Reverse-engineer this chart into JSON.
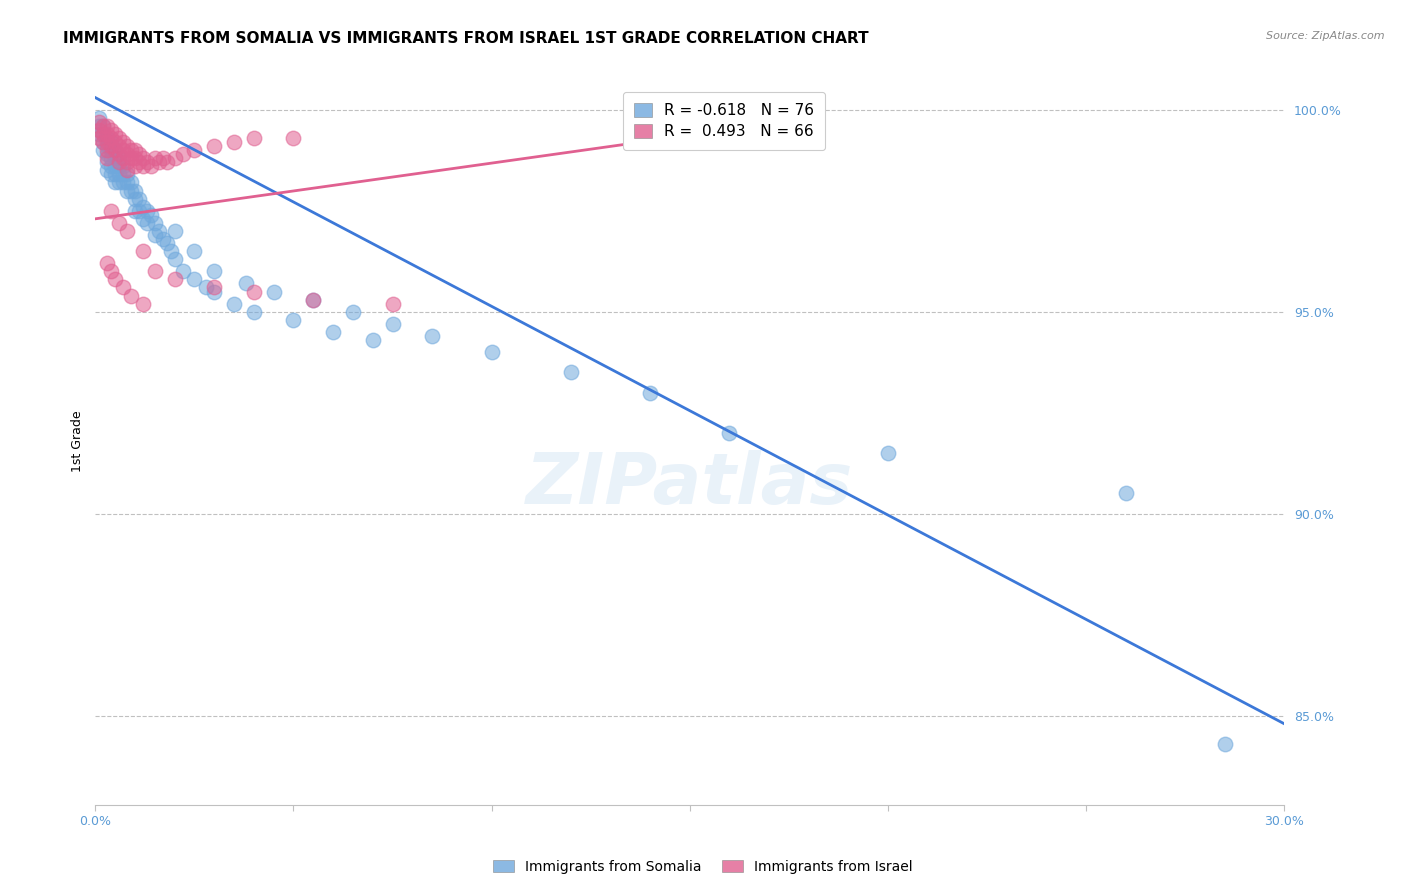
{
  "title": "IMMIGRANTS FROM SOMALIA VS IMMIGRANTS FROM ISRAEL 1ST GRADE CORRELATION CHART",
  "source": "Source: ZipAtlas.com",
  "ylabel": "1st Grade",
  "xlim": [
    0.0,
    0.3
  ],
  "ylim": [
    0.828,
    1.008
  ],
  "yticks": [
    0.85,
    0.9,
    0.95,
    1.0
  ],
  "ytick_labels": [
    "85.0%",
    "90.0%",
    "95.0%",
    "100.0%"
  ],
  "xtick_positions": [
    0.0,
    0.05,
    0.1,
    0.15,
    0.2,
    0.25,
    0.3
  ],
  "blue_color": "#6fa8dc",
  "pink_color": "#e06090",
  "blue_line_color": "#3c78d8",
  "pink_line_color": "#e06090",
  "legend_blue_label": "R = -0.618   N = 76",
  "legend_pink_label": "R =  0.493   N = 66",
  "somalia_label": "Immigrants from Somalia",
  "israel_label": "Immigrants from Israel",
  "watermark": "ZIPatlas",
  "blue_scatter_x": [
    0.001,
    0.001,
    0.001,
    0.002,
    0.002,
    0.002,
    0.002,
    0.003,
    0.003,
    0.003,
    0.003,
    0.003,
    0.004,
    0.004,
    0.004,
    0.004,
    0.004,
    0.005,
    0.005,
    0.005,
    0.005,
    0.005,
    0.006,
    0.006,
    0.006,
    0.006,
    0.007,
    0.007,
    0.007,
    0.008,
    0.008,
    0.008,
    0.009,
    0.009,
    0.01,
    0.01,
    0.01,
    0.011,
    0.011,
    0.012,
    0.012,
    0.013,
    0.013,
    0.014,
    0.015,
    0.015,
    0.016,
    0.017,
    0.018,
    0.019,
    0.02,
    0.022,
    0.025,
    0.028,
    0.03,
    0.035,
    0.04,
    0.05,
    0.06,
    0.07,
    0.02,
    0.025,
    0.03,
    0.038,
    0.045,
    0.055,
    0.065,
    0.075,
    0.085,
    0.1,
    0.12,
    0.14,
    0.16,
    0.2,
    0.26,
    0.285
  ],
  "blue_scatter_y": [
    0.998,
    0.996,
    0.994,
    0.996,
    0.994,
    0.992,
    0.99,
    0.993,
    0.991,
    0.989,
    0.987,
    0.985,
    0.992,
    0.99,
    0.988,
    0.986,
    0.984,
    0.99,
    0.988,
    0.986,
    0.984,
    0.982,
    0.988,
    0.986,
    0.984,
    0.982,
    0.986,
    0.984,
    0.982,
    0.984,
    0.982,
    0.98,
    0.982,
    0.98,
    0.98,
    0.978,
    0.975,
    0.978,
    0.975,
    0.976,
    0.973,
    0.975,
    0.972,
    0.974,
    0.972,
    0.969,
    0.97,
    0.968,
    0.967,
    0.965,
    0.963,
    0.96,
    0.958,
    0.956,
    0.955,
    0.952,
    0.95,
    0.948,
    0.945,
    0.943,
    0.97,
    0.965,
    0.96,
    0.957,
    0.955,
    0.953,
    0.95,
    0.947,
    0.944,
    0.94,
    0.935,
    0.93,
    0.92,
    0.915,
    0.905,
    0.843
  ],
  "pink_scatter_x": [
    0.001,
    0.001,
    0.001,
    0.002,
    0.002,
    0.002,
    0.003,
    0.003,
    0.003,
    0.003,
    0.003,
    0.004,
    0.004,
    0.004,
    0.005,
    0.005,
    0.005,
    0.006,
    0.006,
    0.006,
    0.006,
    0.007,
    0.007,
    0.007,
    0.008,
    0.008,
    0.008,
    0.008,
    0.009,
    0.009,
    0.01,
    0.01,
    0.01,
    0.011,
    0.011,
    0.012,
    0.012,
    0.013,
    0.014,
    0.015,
    0.016,
    0.017,
    0.018,
    0.02,
    0.022,
    0.025,
    0.03,
    0.035,
    0.04,
    0.05,
    0.004,
    0.006,
    0.008,
    0.012,
    0.015,
    0.02,
    0.03,
    0.04,
    0.055,
    0.075,
    0.003,
    0.004,
    0.005,
    0.007,
    0.009,
    0.012
  ],
  "pink_scatter_y": [
    0.997,
    0.995,
    0.993,
    0.996,
    0.994,
    0.992,
    0.996,
    0.994,
    0.992,
    0.99,
    0.988,
    0.995,
    0.993,
    0.991,
    0.994,
    0.992,
    0.99,
    0.993,
    0.991,
    0.989,
    0.987,
    0.992,
    0.99,
    0.988,
    0.991,
    0.989,
    0.987,
    0.985,
    0.99,
    0.988,
    0.99,
    0.988,
    0.986,
    0.989,
    0.987,
    0.988,
    0.986,
    0.987,
    0.986,
    0.988,
    0.987,
    0.988,
    0.987,
    0.988,
    0.989,
    0.99,
    0.991,
    0.992,
    0.993,
    0.993,
    0.975,
    0.972,
    0.97,
    0.965,
    0.96,
    0.958,
    0.956,
    0.955,
    0.953,
    0.952,
    0.962,
    0.96,
    0.958,
    0.956,
    0.954,
    0.952
  ],
  "blue_line_x": [
    0.0,
    0.3
  ],
  "blue_line_y": [
    1.003,
    0.848
  ],
  "pink_line_x": [
    0.0,
    0.145
  ],
  "pink_line_y": [
    0.973,
    0.993
  ],
  "tick_color": "#5b9bd5",
  "grid_color": "#c0c0c0",
  "title_fontsize": 11,
  "axis_label_fontsize": 9,
  "tick_fontsize": 9
}
